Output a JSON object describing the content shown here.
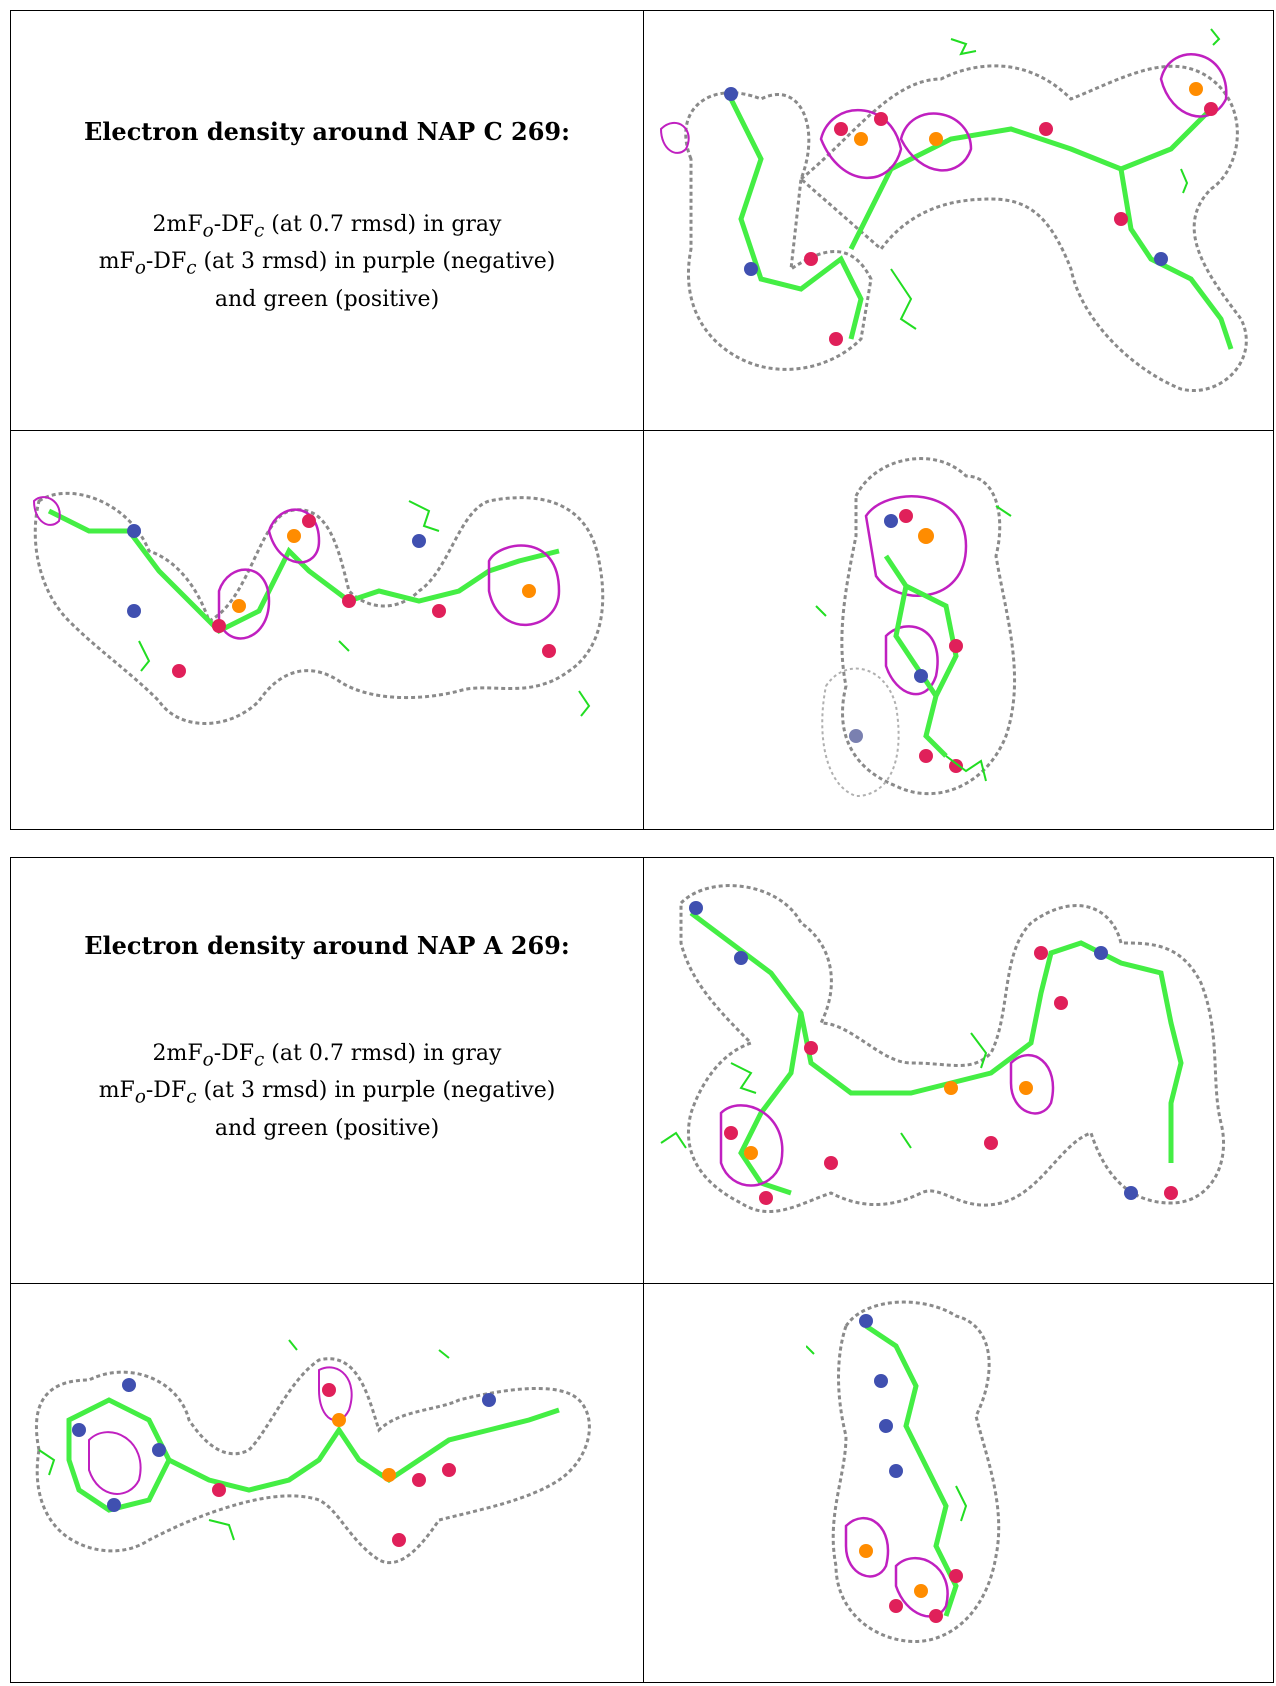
{
  "panels": [
    {
      "title": "Electron density around NAP C 269:",
      "line1_a": "2mF",
      "line1_sub1": "o",
      "line1_b": "-DF",
      "line1_sub2": "c",
      "line1_c": " (at 0.7 rmsd) in gray",
      "line2_a": "mF",
      "line2_sub1": "o",
      "line2_b": "-DF",
      "line2_sub2": "c",
      "line2_c": " (at 3 rmsd) in purple (negative)",
      "line3": "and green (positive)"
    },
    {
      "title": "Electron density around NAP A 269:",
      "line1_a": "2mF",
      "line1_sub1": "o",
      "line1_b": "-DF",
      "line1_sub2": "c",
      "line1_c": " (at 0.7 rmsd) in gray",
      "line2_a": "mF",
      "line2_sub1": "o",
      "line2_b": "-DF",
      "line2_sub2": "c",
      "line2_c": " (at 3 rmsd) in purple (negative)",
      "line3": "and green (positive)"
    }
  ],
  "colors": {
    "mesh_2fofc": "#8a8a8a",
    "mesh_negative": "#c020c0",
    "mesh_positive": "#22dd22",
    "carbon": "#44ee44",
    "oxygen": "#e0205a",
    "nitrogen": "#4050b0",
    "phosphorus": "#ff8c00"
  }
}
